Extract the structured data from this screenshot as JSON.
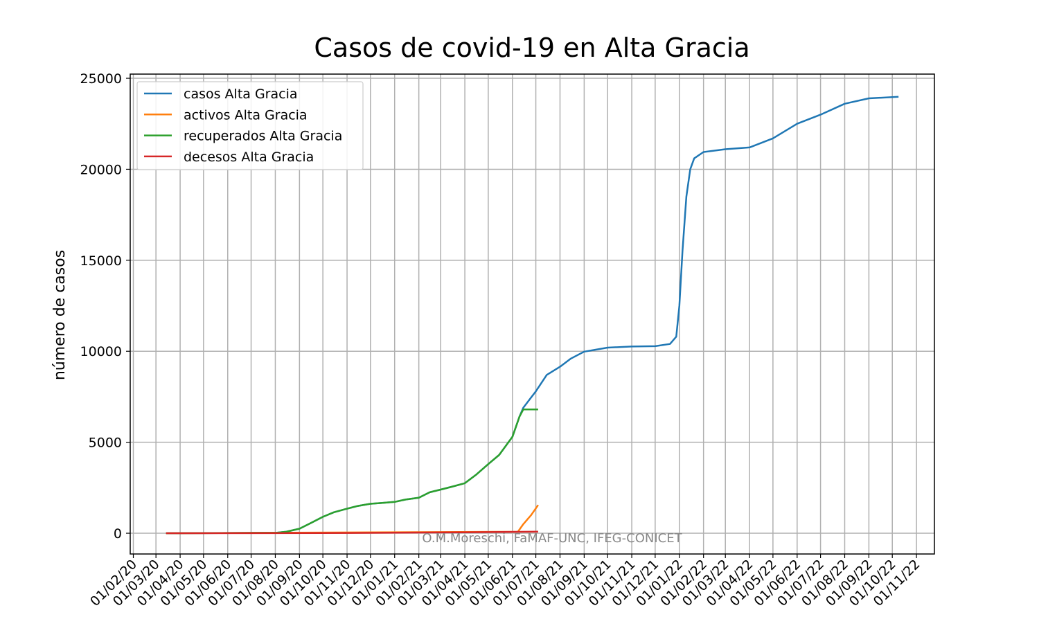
{
  "chart_data": {
    "type": "line",
    "title": "Casos de covid-19 en Alta Gracia",
    "y_label": "número de casos",
    "annotation": "O.M.Moreschi, FaMAF-UNC, IFEG-CONICET",
    "xlim": [
      "2020-01-28",
      "2022-11-24"
    ],
    "ylim": [
      -1140,
      25230
    ],
    "yticks": [
      0,
      5000,
      10000,
      15000,
      20000,
      25000
    ],
    "xticks": [
      {
        "value": "2020-02-01",
        "label": "01/02/20"
      },
      {
        "value": "2020-03-01",
        "label": "01/03/20"
      },
      {
        "value": "2020-04-01",
        "label": "01/04/20"
      },
      {
        "value": "2020-05-01",
        "label": "01/05/20"
      },
      {
        "value": "2020-06-01",
        "label": "01/06/20"
      },
      {
        "value": "2020-07-01",
        "label": "01/07/20"
      },
      {
        "value": "2020-08-01",
        "label": "01/08/20"
      },
      {
        "value": "2020-09-01",
        "label": "01/09/20"
      },
      {
        "value": "2020-10-01",
        "label": "01/10/20"
      },
      {
        "value": "2020-11-01",
        "label": "01/11/20"
      },
      {
        "value": "2020-12-01",
        "label": "01/12/20"
      },
      {
        "value": "2021-01-01",
        "label": "01/01/21"
      },
      {
        "value": "2021-02-01",
        "label": "01/02/21"
      },
      {
        "value": "2021-03-01",
        "label": "01/03/21"
      },
      {
        "value": "2021-04-01",
        "label": "01/04/21"
      },
      {
        "value": "2021-05-01",
        "label": "01/05/21"
      },
      {
        "value": "2021-06-01",
        "label": "01/06/21"
      },
      {
        "value": "2021-07-01",
        "label": "01/07/21"
      },
      {
        "value": "2021-08-01",
        "label": "01/08/21"
      },
      {
        "value": "2021-09-01",
        "label": "01/09/21"
      },
      {
        "value": "2021-10-01",
        "label": "01/10/21"
      },
      {
        "value": "2021-11-01",
        "label": "01/11/21"
      },
      {
        "value": "2021-12-01",
        "label": "01/12/21"
      },
      {
        "value": "2022-01-01",
        "label": "01/01/22"
      },
      {
        "value": "2022-02-01",
        "label": "01/02/22"
      },
      {
        "value": "2022-03-01",
        "label": "01/03/22"
      },
      {
        "value": "2022-04-01",
        "label": "01/04/22"
      },
      {
        "value": "2022-05-01",
        "label": "01/05/22"
      },
      {
        "value": "2022-06-01",
        "label": "01/06/22"
      },
      {
        "value": "2022-07-01",
        "label": "01/07/22"
      },
      {
        "value": "2022-08-01",
        "label": "01/08/22"
      },
      {
        "value": "2022-09-01",
        "label": "01/09/22"
      },
      {
        "value": "2022-10-01",
        "label": "01/10/22"
      },
      {
        "value": "2022-11-01",
        "label": "01/11/22"
      }
    ],
    "grid": true,
    "legend": "upper left",
    "series": [
      {
        "name": "casos Alta Gracia",
        "color": "#1f77b4",
        "x": [
          "2020-03-14",
          "2020-08-01",
          "2020-08-15",
          "2020-09-01",
          "2020-09-15",
          "2020-10-01",
          "2020-10-15",
          "2020-11-01",
          "2020-11-15",
          "2020-12-01",
          "2020-12-15",
          "2021-01-01",
          "2021-01-15",
          "2021-02-01",
          "2021-02-15",
          "2021-03-01",
          "2021-03-15",
          "2021-04-01",
          "2021-04-15",
          "2021-05-01",
          "2021-05-15",
          "2021-06-01",
          "2021-06-10",
          "2021-06-15",
          "2021-07-01",
          "2021-07-15",
          "2021-08-01",
          "2021-08-15",
          "2021-09-01",
          "2021-10-01",
          "2021-11-01",
          "2021-12-01",
          "2021-12-20",
          "2021-12-28",
          "2022-01-01",
          "2022-01-05",
          "2022-01-10",
          "2022-01-15",
          "2022-01-20",
          "2022-02-01",
          "2022-03-01",
          "2022-04-01",
          "2022-05-01",
          "2022-06-01",
          "2022-07-01",
          "2022-08-01",
          "2022-09-01",
          "2022-10-09"
        ],
        "values": [
          0,
          20,
          80,
          250,
          550,
          900,
          1150,
          1350,
          1500,
          1620,
          1660,
          1720,
          1850,
          1950,
          2250,
          2400,
          2550,
          2750,
          3200,
          3800,
          4300,
          5300,
          6400,
          6900,
          7800,
          8700,
          9150,
          9600,
          9980,
          10200,
          10260,
          10280,
          10400,
          10800,
          12500,
          15500,
          18500,
          20000,
          20600,
          20950,
          21100,
          21200,
          21700,
          22500,
          23000,
          23600,
          23900,
          23980
        ]
      },
      {
        "name": "activos Alta Gracia",
        "color": "#ff7f0e",
        "x": [
          "2020-03-14",
          "2021-06-08",
          "2021-06-15",
          "2021-06-25",
          "2021-07-04"
        ],
        "values": [
          0,
          80,
          500,
          1000,
          1550
        ]
      },
      {
        "name": "recuperados Alta Gracia",
        "color": "#2ca02c",
        "x": [
          "2020-03-14",
          "2020-08-01",
          "2020-08-15",
          "2020-09-01",
          "2020-09-15",
          "2020-10-01",
          "2020-10-15",
          "2020-11-01",
          "2020-11-15",
          "2020-12-01",
          "2020-12-15",
          "2021-01-01",
          "2021-01-15",
          "2021-02-01",
          "2021-02-15",
          "2021-03-01",
          "2021-03-15",
          "2021-04-01",
          "2021-04-15",
          "2021-05-01",
          "2021-05-15",
          "2021-06-01",
          "2021-06-10",
          "2021-06-15",
          "2021-07-04"
        ],
        "values": [
          0,
          20,
          80,
          250,
          550,
          900,
          1150,
          1350,
          1500,
          1620,
          1660,
          1720,
          1850,
          1950,
          2250,
          2400,
          2550,
          2750,
          3200,
          3800,
          4300,
          5300,
          6400,
          6800,
          6800
        ]
      },
      {
        "name": "decesos Alta Gracia",
        "color": "#d62728",
        "x": [
          "2020-03-14",
          "2020-10-01",
          "2021-01-01",
          "2021-04-01",
          "2021-07-04"
        ],
        "values": [
          0,
          10,
          30,
          50,
          90
        ]
      }
    ]
  }
}
